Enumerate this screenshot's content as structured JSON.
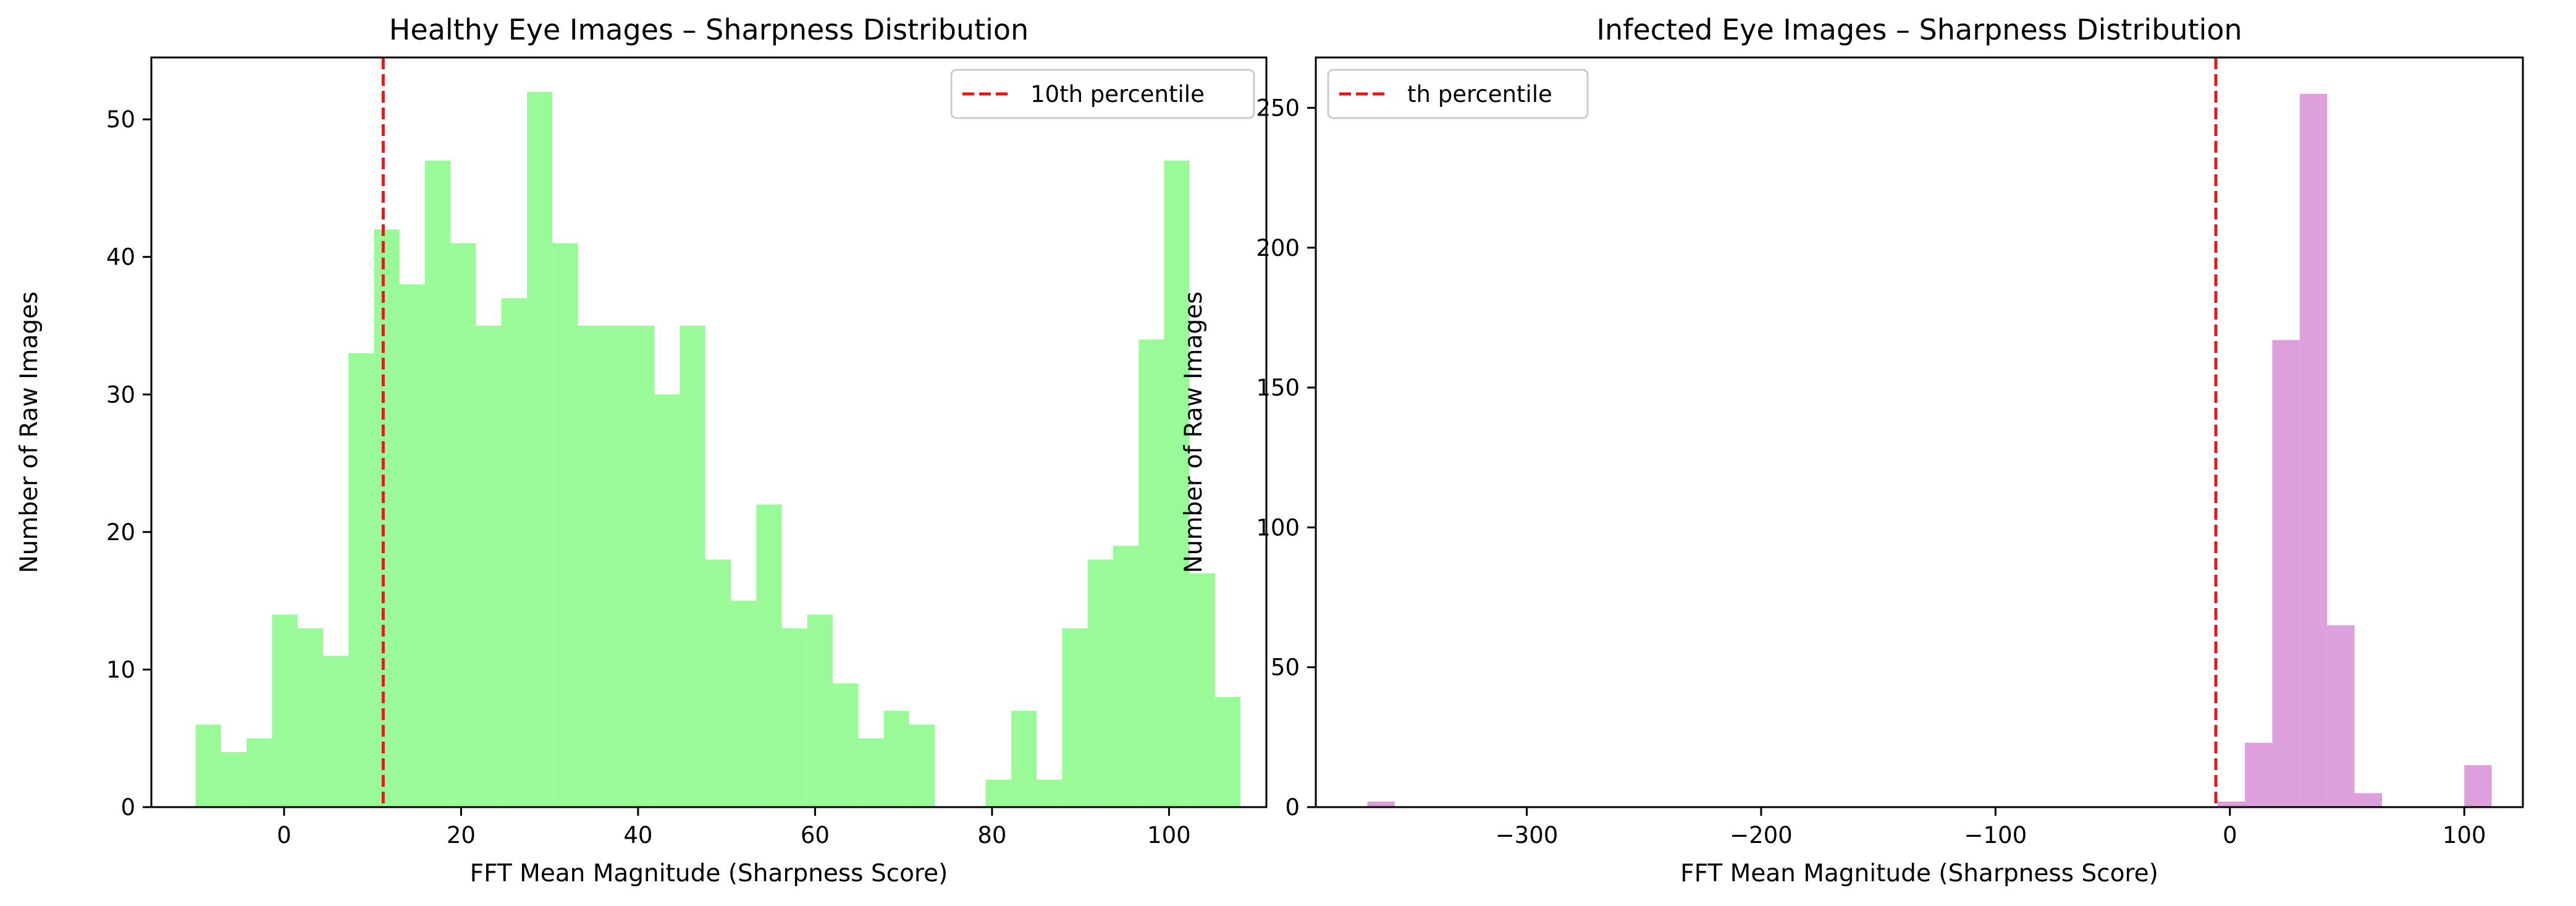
{
  "chart_data": [
    {
      "type": "bar",
      "title": "Healthy Eye Images – Sharpness Distribution",
      "xlabel": "FFT Mean Magnitude (Sharpness Score)",
      "ylabel": "Number of Raw Images",
      "xlim": [
        -15.0,
        111.0
      ],
      "ylim": [
        0,
        54.5
      ],
      "xticks": [
        0,
        20,
        40,
        60,
        80,
        100
      ],
      "xtick_labels": [
        "0",
        "20",
        "40",
        "60",
        "80",
        "100"
      ],
      "yticks": [
        0,
        10,
        20,
        30,
        40,
        50
      ],
      "ytick_labels": [
        "0",
        "10",
        "20",
        "30",
        "40",
        "50"
      ],
      "bin_start": -10.0,
      "bin_width": 2.88,
      "values": [
        6,
        4,
        5,
        14,
        13,
        11,
        33,
        42,
        38,
        47,
        41,
        35,
        37,
        52,
        41,
        35,
        35,
        35,
        30,
        35,
        18,
        15,
        22,
        13,
        14,
        9,
        5,
        7,
        6,
        0,
        0,
        2,
        7,
        2,
        13,
        18,
        19,
        34,
        47,
        17,
        8
      ],
      "color": "#98FB98",
      "threshold": {
        "x": 11.2,
        "color": "#E31A1C",
        "label": "10th percentile"
      },
      "legend_position": "top-right",
      "grid": false
    },
    {
      "type": "bar",
      "title": "Infected Eye Images – Sharpness Distribution",
      "xlabel": "FFT Mean Magnitude (Sharpness Score)",
      "ylabel": "Number of Raw Images",
      "xlim": [
        -390.0,
        125.0
      ],
      "ylim": [
        0,
        268
      ],
      "xticks": [
        -300,
        -200,
        -100,
        0,
        100
      ],
      "xtick_labels": [
        "−300",
        "−200",
        "−100",
        "0",
        "100"
      ],
      "yticks": [
        0,
        50,
        100,
        150,
        200,
        250
      ],
      "ytick_labels": [
        "0",
        "50",
        "100",
        "150",
        "200",
        "250"
      ],
      "bin_start": -368.0,
      "bin_width": 11.7,
      "values": [
        2,
        0,
        0,
        0,
        0,
        0,
        0,
        0,
        0,
        0,
        0,
        0,
        0,
        0,
        0,
        0,
        0,
        0,
        0,
        0,
        0,
        0,
        0,
        0,
        0,
        0,
        0,
        0,
        0,
        0,
        0,
        2,
        23,
        167,
        255,
        65,
        5,
        0,
        0,
        0,
        15
      ],
      "color": "#DDA0DD",
      "threshold": {
        "x": -6.0,
        "color": "#E31A1C",
        "label": "th percentile"
      },
      "legend_position": "top-left",
      "grid": false
    }
  ]
}
